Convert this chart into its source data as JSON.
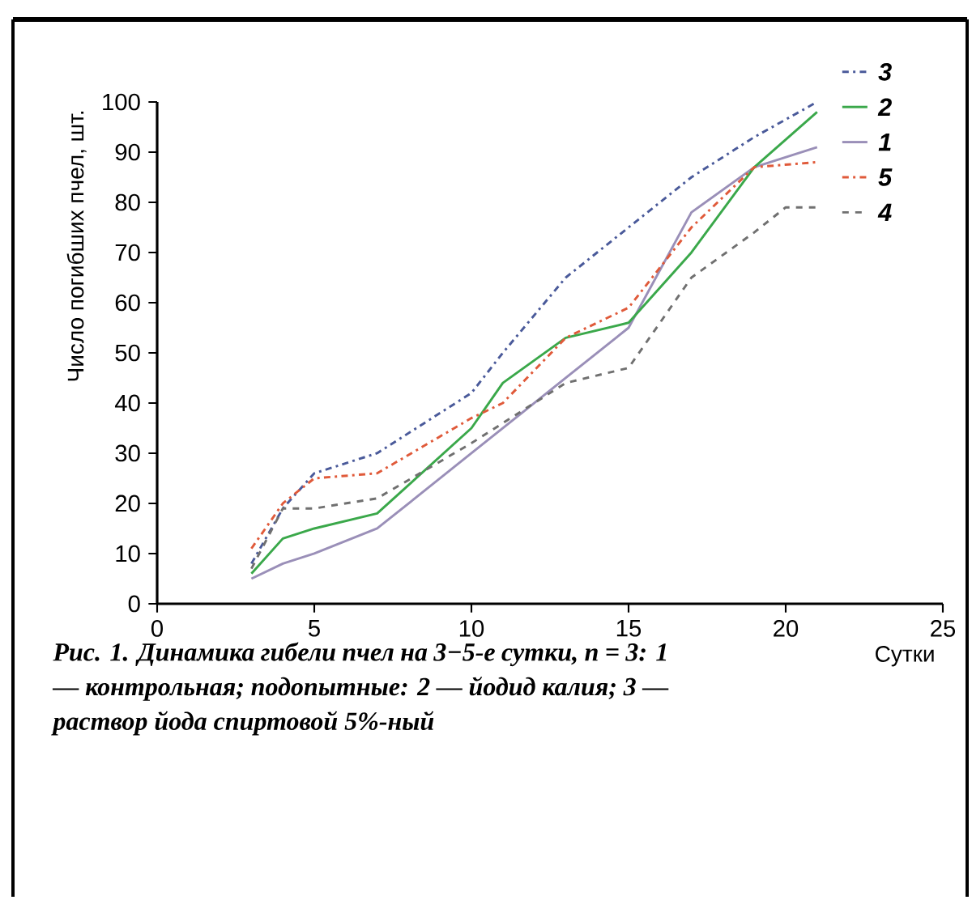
{
  "chart_data": {
    "type": "line",
    "xlabel": "Сутки",
    "ylabel": "Число погибших пчел, шт.",
    "annotations": [
      "Рис. 1. Динамика гибели пчел на 3−5-е сутки, n = 3: 1 — контрольная; подопытные: 2 — йодид калия; 3 — раствор йода спиртовой 5%-ный"
    ],
    "legend": "right",
    "xlim": [
      0,
      25
    ],
    "xticks": [
      0,
      5,
      10,
      15,
      20,
      25
    ],
    "ylim": [
      0,
      100
    ],
    "yticks": [
      0,
      10,
      20,
      30,
      40,
      50,
      60,
      70,
      80,
      90,
      100
    ],
    "series": [
      {
        "name": "1",
        "color": "#9a8fb8",
        "line_style": "solid",
        "x": [
          3,
          4,
          5,
          7,
          10,
          13,
          15,
          17,
          19,
          21
        ],
        "values": [
          5,
          8,
          10,
          15,
          30,
          45,
          55,
          78,
          87,
          91
        ]
      },
      {
        "name": "2",
        "color": "#3aa84a",
        "line_style": "solid",
        "x": [
          3,
          4,
          5,
          7,
          10,
          11,
          13,
          15,
          17,
          19,
          21
        ],
        "values": [
          6,
          13,
          15,
          18,
          35,
          44,
          53,
          56,
          70,
          87,
          98
        ]
      },
      {
        "name": "3",
        "color": "#4a5a9a",
        "line_style": "dashdot",
        "x": [
          3,
          4,
          5,
          7,
          10,
          11,
          13,
          15,
          17,
          19,
          21
        ],
        "values": [
          8,
          19,
          26,
          30,
          42,
          50,
          65,
          75,
          85,
          93,
          100
        ]
      },
      {
        "name": "4",
        "color": "#707070",
        "line_style": "dashed",
        "x": [
          3,
          4,
          5,
          7,
          10,
          13,
          15,
          17,
          19,
          20,
          21
        ],
        "values": [
          7,
          19,
          19,
          21,
          32,
          44,
          47,
          65,
          74,
          79,
          79
        ]
      },
      {
        "name": "5",
        "color": "#e05a3a",
        "line_style": "dashdot",
        "x": [
          3,
          4,
          5,
          7,
          10,
          11,
          13,
          15,
          17,
          19,
          21
        ],
        "values": [
          11,
          20,
          25,
          26,
          37,
          40,
          53,
          59,
          75,
          87,
          88
        ]
      }
    ]
  }
}
